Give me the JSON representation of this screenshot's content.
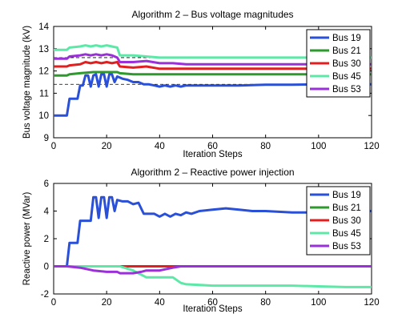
{
  "chart_data": [
    {
      "type": "line",
      "title": "Algorithm 2 – Bus voltage magnitudes",
      "xlabel": "Iteration Steps",
      "ylabel": "Bus voltage magnitude (kV)",
      "xlim": [
        0,
        120
      ],
      "ylim": [
        9,
        14
      ],
      "xticks": [
        0,
        20,
        40,
        60,
        80,
        100,
        120
      ],
      "yticks": [
        9,
        10,
        11,
        12,
        13,
        14
      ],
      "grid": false,
      "legend": "top-right",
      "reference_lines": [
        12.6,
        11.4
      ],
      "series": [
        {
          "name": "Bus 19",
          "color": "#2a50d8",
          "x": [
            0,
            5,
            6,
            9,
            10,
            11,
            12,
            13,
            14,
            15,
            16,
            17,
            18,
            19,
            20,
            21,
            22,
            23,
            24,
            25,
            26,
            28,
            30,
            32,
            34,
            36,
            38,
            40,
            42,
            44,
            46,
            48,
            50,
            55,
            60,
            70,
            80,
            90,
            100,
            110,
            120
          ],
          "values": [
            10.0,
            10.0,
            10.75,
            10.75,
            11.35,
            11.35,
            11.8,
            11.8,
            11.3,
            11.8,
            11.85,
            11.3,
            11.85,
            11.85,
            11.3,
            11.85,
            11.85,
            11.5,
            11.75,
            11.7,
            11.65,
            11.6,
            11.5,
            11.5,
            11.4,
            11.4,
            11.35,
            11.3,
            11.35,
            11.3,
            11.35,
            11.3,
            11.35,
            11.35,
            11.35,
            11.35,
            11.38,
            11.38,
            11.4,
            11.4,
            11.4
          ]
        },
        {
          "name": "Bus 21",
          "color": "#2e9a2e",
          "x": [
            0,
            5,
            6,
            10,
            15,
            20,
            24,
            25,
            30,
            40,
            50,
            60,
            80,
            100,
            120
          ],
          "values": [
            11.8,
            11.8,
            11.85,
            11.9,
            11.95,
            11.95,
            11.95,
            11.9,
            11.85,
            11.85,
            11.85,
            11.85,
            11.85,
            11.85,
            11.85
          ]
        },
        {
          "name": "Bus 30",
          "color": "#e02020",
          "x": [
            0,
            5,
            6,
            10,
            12,
            14,
            16,
            18,
            20,
            22,
            24,
            25,
            30,
            35,
            40,
            45,
            50,
            60,
            80,
            100,
            120
          ],
          "values": [
            12.2,
            12.2,
            12.25,
            12.3,
            12.4,
            12.35,
            12.4,
            12.35,
            12.4,
            12.35,
            12.4,
            12.2,
            12.15,
            12.2,
            12.1,
            12.1,
            12.1,
            12.1,
            12.1,
            12.1,
            12.1
          ]
        },
        {
          "name": "Bus 45",
          "color": "#5ee8a8",
          "x": [
            0,
            5,
            6,
            10,
            12,
            14,
            16,
            18,
            20,
            22,
            24,
            25,
            30,
            40,
            50,
            60,
            80,
            100,
            120
          ],
          "values": [
            12.95,
            12.95,
            13.05,
            13.1,
            13.15,
            13.1,
            13.15,
            13.1,
            13.15,
            13.1,
            13.05,
            12.7,
            12.7,
            12.6,
            12.6,
            12.6,
            12.6,
            12.6,
            12.6
          ]
        },
        {
          "name": "Bus 53",
          "color": "#9a30d8",
          "x": [
            0,
            5,
            6,
            10,
            12,
            14,
            16,
            18,
            20,
            22,
            24,
            25,
            30,
            35,
            40,
            45,
            50,
            60,
            80,
            100,
            120
          ],
          "values": [
            12.55,
            12.55,
            12.65,
            12.7,
            12.75,
            12.7,
            12.75,
            12.7,
            12.75,
            12.7,
            12.6,
            12.4,
            12.4,
            12.45,
            12.35,
            12.35,
            12.3,
            12.3,
            12.3,
            12.3,
            12.3
          ]
        }
      ]
    },
    {
      "type": "line",
      "title": "Algorithm 2 – Reactive power injection",
      "xlabel": "Iteration Steps",
      "ylabel": "Reactive power (MVar)",
      "xlim": [
        0,
        120
      ],
      "ylim": [
        -2,
        6
      ],
      "xticks": [
        0,
        20,
        40,
        60,
        80,
        100,
        120
      ],
      "yticks": [
        -2,
        0,
        2,
        4,
        6
      ],
      "grid": false,
      "legend": "top-right",
      "series": [
        {
          "name": "Bus 19",
          "color": "#2a50d8",
          "x": [
            0,
            5,
            6,
            9,
            10,
            11,
            12,
            13,
            14,
            15,
            16,
            17,
            18,
            19,
            20,
            21,
            22,
            23,
            24,
            26,
            28,
            30,
            32,
            34,
            36,
            38,
            40,
            42,
            44,
            46,
            48,
            50,
            52,
            55,
            60,
            65,
            70,
            75,
            80,
            90,
            100,
            110,
            120
          ],
          "values": [
            0,
            0,
            1.7,
            1.7,
            3.3,
            3.3,
            3.3,
            3.3,
            3.3,
            5.0,
            5.0,
            3.5,
            5.0,
            5.0,
            3.5,
            5.0,
            5.0,
            4.0,
            4.8,
            4.7,
            4.7,
            4.5,
            4.6,
            3.8,
            3.8,
            3.8,
            3.6,
            3.8,
            3.6,
            3.8,
            3.7,
            3.9,
            3.8,
            4.0,
            4.1,
            4.2,
            4.1,
            4.0,
            4.0,
            3.9,
            3.9,
            4.0,
            4.0
          ]
        },
        {
          "name": "Bus 21",
          "color": "#2e9a2e",
          "x": [
            0,
            120
          ],
          "values": [
            0,
            0
          ]
        },
        {
          "name": "Bus 30",
          "color": "#e02020",
          "x": [
            0,
            120
          ],
          "values": [
            0,
            0
          ]
        },
        {
          "name": "Bus 45",
          "color": "#5ee8a8",
          "x": [
            0,
            5,
            10,
            15,
            20,
            25,
            30,
            35,
            40,
            45,
            48,
            50,
            60,
            70,
            80,
            90,
            100,
            110,
            120
          ],
          "values": [
            0,
            0,
            0,
            0,
            0,
            0,
            -0.3,
            -0.8,
            -0.8,
            -0.8,
            -1.2,
            -1.3,
            -1.4,
            -1.4,
            -1.4,
            -1.4,
            -1.45,
            -1.5,
            -1.5
          ]
        },
        {
          "name": "Bus 53",
          "color": "#9a30d8",
          "x": [
            0,
            5,
            10,
            15,
            20,
            24,
            25,
            30,
            33,
            35,
            40,
            45,
            48,
            50,
            60,
            80,
            100,
            120
          ],
          "values": [
            0,
            0,
            -0.1,
            -0.3,
            -0.4,
            -0.4,
            -0.5,
            -0.5,
            -0.4,
            -0.3,
            -0.3,
            -0.1,
            0,
            0,
            0,
            0,
            0,
            0
          ]
        }
      ]
    }
  ]
}
